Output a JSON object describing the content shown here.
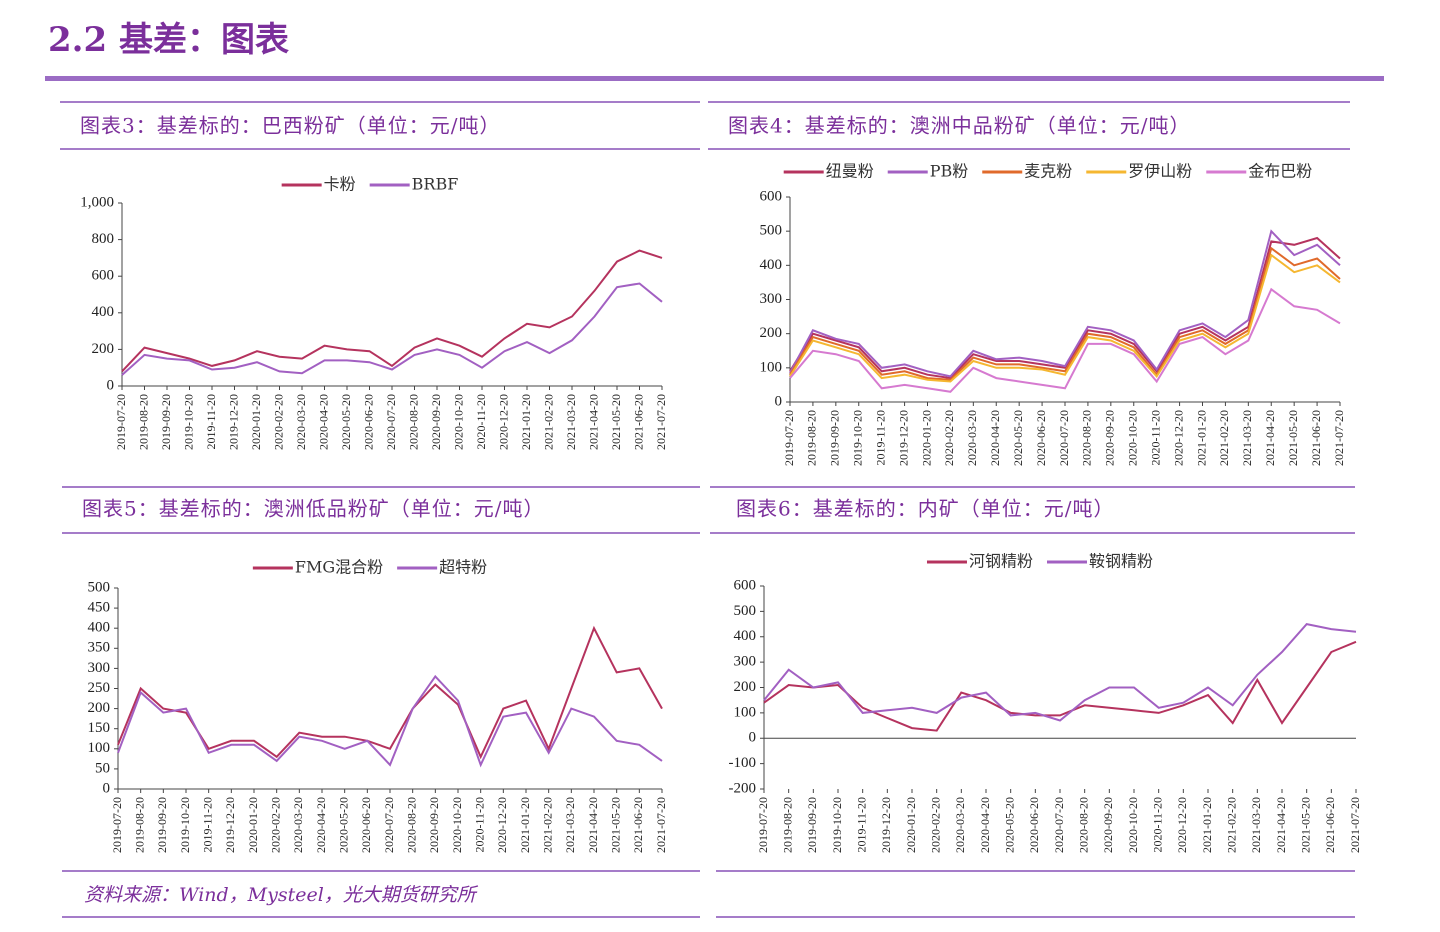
{
  "header": {
    "title": "2.2 基差：图表"
  },
  "source": "资料来源：Wind，Mysteel，光大期货研究所",
  "chart_data": [
    {
      "type": "line",
      "title": "图表3：基差标的：巴西粉矿（单位：元/吨）",
      "categories": [
        "2019-07-20",
        "2019-08-20",
        "2019-09-20",
        "2019-10-20",
        "2019-11-20",
        "2019-12-20",
        "2020-01-20",
        "2020-02-20",
        "2020-03-20",
        "2020-04-20",
        "2020-05-20",
        "2020-06-20",
        "2020-07-20",
        "2020-08-20",
        "2020-09-20",
        "2020-10-20",
        "2020-11-20",
        "2020-12-20",
        "2021-01-20",
        "2021-02-20",
        "2021-03-20",
        "2021-04-20",
        "2021-05-20",
        "2021-06-20",
        "2021-07-20"
      ],
      "series": [
        {
          "name": "卡粉",
          "color": "#b5335e",
          "values": [
            80,
            210,
            180,
            150,
            110,
            140,
            190,
            160,
            150,
            220,
            200,
            190,
            110,
            210,
            260,
            220,
            160,
            260,
            340,
            320,
            380,
            520,
            680,
            740,
            700
          ]
        },
        {
          "name": "BRBF",
          "color": "#a260c2",
          "values": [
            60,
            170,
            150,
            140,
            90,
            100,
            130,
            80,
            70,
            140,
            140,
            130,
            90,
            170,
            200,
            170,
            100,
            190,
            240,
            180,
            250,
            380,
            540,
            560,
            460
          ]
        }
      ],
      "ylim": [
        0,
        1000
      ],
      "yticks": [
        0,
        200,
        400,
        600,
        800,
        {
          "value": 1000,
          "label": "1,000"
        }
      ]
    },
    {
      "type": "line",
      "title": "图表4：基差标的：澳洲中品粉矿（单位：元/吨）",
      "categories": [
        "2019-07-20",
        "2019-08-20",
        "2019-09-20",
        "2019-10-20",
        "2019-11-20",
        "2019-12-20",
        "2020-01-20",
        "2020-02-20",
        "2020-03-20",
        "2020-04-20",
        "2020-05-20",
        "2020-06-20",
        "2020-07-20",
        "2020-08-20",
        "2020-09-20",
        "2020-10-20",
        "2020-11-20",
        "2020-12-20",
        "2021-01-20",
        "2021-02-20",
        "2021-03-20",
        "2021-04-20",
        "2021-05-20",
        "2021-06-20",
        "2021-07-20"
      ],
      "series": [
        {
          "name": "纽曼粉",
          "color": "#b5335e",
          "values": [
            90,
            200,
            180,
            160,
            90,
            100,
            80,
            70,
            140,
            120,
            120,
            110,
            100,
            210,
            200,
            170,
            90,
            200,
            220,
            180,
            220,
            470,
            460,
            480,
            420
          ]
        },
        {
          "name": "PB粉",
          "color": "#a260c2",
          "values": [
            85,
            210,
            185,
            170,
            100,
            110,
            90,
            75,
            150,
            125,
            130,
            120,
            105,
            220,
            210,
            180,
            95,
            210,
            230,
            190,
            240,
            500,
            430,
            460,
            400
          ]
        },
        {
          "name": "麦克粉",
          "color": "#e06a2b",
          "values": [
            80,
            190,
            170,
            150,
            80,
            90,
            70,
            65,
            130,
            110,
            110,
            100,
            90,
            200,
            190,
            160,
            80,
            190,
            210,
            170,
            210,
            450,
            400,
            420,
            360
          ]
        },
        {
          "name": "罗伊山粉",
          "color": "#f5b731",
          "values": [
            75,
            180,
            160,
            140,
            70,
            80,
            65,
            60,
            120,
            100,
            100,
            95,
            80,
            190,
            180,
            150,
            75,
            180,
            200,
            160,
            200,
            430,
            380,
            400,
            350
          ]
        },
        {
          "name": "金布巴粉",
          "color": "#d67ad0",
          "values": [
            70,
            150,
            140,
            120,
            40,
            50,
            40,
            30,
            100,
            70,
            60,
            50,
            40,
            170,
            170,
            140,
            60,
            170,
            190,
            140,
            180,
            330,
            280,
            270,
            230
          ]
        }
      ],
      "ylim": [
        0,
        600
      ],
      "yticks": [
        0,
        100,
        200,
        300,
        400,
        500,
        600
      ]
    },
    {
      "type": "line",
      "title": "图表5：基差标的：澳洲低品粉矿（单位：元/吨）",
      "categories": [
        "2019-07-20",
        "2019-08-20",
        "2019-09-20",
        "2019-10-20",
        "2019-11-20",
        "2019-12-20",
        "2020-01-20",
        "2020-02-20",
        "2020-03-20",
        "2020-04-20",
        "2020-05-20",
        "2020-06-20",
        "2020-07-20",
        "2020-08-20",
        "2020-09-20",
        "2020-10-20",
        "2020-11-20",
        "2020-12-20",
        "2021-01-20",
        "2021-02-20",
        "2021-03-20",
        "2021-04-20",
        "2021-05-20",
        "2021-06-20",
        "2021-07-20"
      ],
      "series": [
        {
          "name": "FMG混合粉",
          "color": "#b5335e",
          "values": [
            110,
            250,
            200,
            190,
            100,
            120,
            120,
            80,
            140,
            130,
            130,
            120,
            100,
            200,
            260,
            210,
            80,
            200,
            220,
            100,
            250,
            400,
            290,
            300,
            200
          ]
        },
        {
          "name": "超特粉",
          "color": "#a260c2",
          "values": [
            90,
            240,
            190,
            200,
            90,
            110,
            110,
            70,
            130,
            120,
            100,
            120,
            60,
            200,
            280,
            220,
            60,
            180,
            190,
            90,
            200,
            180,
            120,
            110,
            70
          ]
        }
      ],
      "ylim": [
        0,
        500
      ],
      "yticks": [
        0,
        50,
        100,
        150,
        200,
        250,
        300,
        350,
        400,
        450,
        500
      ]
    },
    {
      "type": "line",
      "title": "图表6：基差标的：内矿（单位：元/吨）",
      "categories": [
        "2019-07-20",
        "2019-08-20",
        "2019-09-20",
        "2019-10-20",
        "2019-11-20",
        "2019-12-20",
        "2020-01-20",
        "2020-02-20",
        "2020-03-20",
        "2020-04-20",
        "2020-05-20",
        "2020-06-20",
        "2020-07-20",
        "2020-08-20",
        "2020-09-20",
        "2020-10-20",
        "2020-11-20",
        "2020-12-20",
        "2021-01-20",
        "2021-02-20",
        "2021-03-20",
        "2021-04-20",
        "2021-05-20",
        "2021-06-20",
        "2021-07-20"
      ],
      "series": [
        {
          "name": "河钢精粉",
          "color": "#b5335e",
          "values": [
            140,
            210,
            200,
            210,
            120,
            80,
            40,
            30,
            180,
            150,
            100,
            90,
            90,
            130,
            120,
            110,
            100,
            130,
            170,
            60,
            230,
            60,
            200,
            340,
            380
          ]
        },
        {
          "name": "鞍钢精粉",
          "color": "#a260c2",
          "values": [
            150,
            270,
            200,
            220,
            100,
            110,
            120,
            100,
            160,
            180,
            90,
            100,
            70,
            150,
            200,
            200,
            120,
            140,
            200,
            130,
            250,
            340,
            450,
            430,
            420
          ]
        }
      ],
      "ylim": [
        -200,
        600
      ],
      "yticks": [
        -200,
        -100,
        0,
        100,
        200,
        300,
        400,
        500,
        600
      ],
      "negative_tick_color": "#e00000"
    }
  ]
}
